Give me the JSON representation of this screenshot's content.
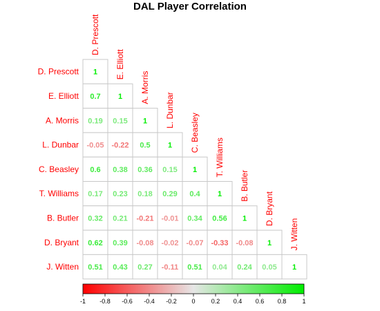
{
  "chart_data": {
    "type": "heatmap",
    "subtype": "correlation-lower-triangle",
    "title": "DAL Player Correlation",
    "players": [
      "D. Prescott",
      "E. Elliott",
      "A. Morris",
      "L. Dunbar",
      "C. Beasley",
      "T. Williams",
      "B. Butler",
      "D. Bryant",
      "J. Witten"
    ],
    "matrix": [
      [
        1
      ],
      [
        0.7,
        1
      ],
      [
        0.19,
        0.15,
        1
      ],
      [
        -0.05,
        -0.22,
        0.5,
        1
      ],
      [
        0.6,
        0.38,
        0.36,
        0.15,
        1
      ],
      [
        0.17,
        0.23,
        0.18,
        0.29,
        0.4,
        1
      ],
      [
        0.32,
        0.21,
        -0.21,
        -0.01,
        0.34,
        0.56,
        1
      ],
      [
        0.62,
        0.39,
        -0.08,
        -0.02,
        -0.07,
        -0.33,
        -0.08,
        1
      ],
      [
        0.51,
        0.43,
        0.27,
        -0.11,
        0.51,
        0.04,
        0.24,
        0.05,
        1
      ]
    ],
    "colorbar": {
      "range": [
        -1,
        1
      ],
      "ticks": [
        -1,
        -0.8,
        -0.6,
        -0.4,
        -0.2,
        0,
        0.2,
        0.4,
        0.6,
        0.8,
        1
      ],
      "tick_labels": [
        "-1",
        "-0.8",
        "-0.6",
        "-0.4",
        "-0.2",
        "0",
        "0.2",
        "0.4",
        "0.6",
        "0.8",
        "1"
      ]
    },
    "colors": {
      "negative": "#ff0000",
      "zero": "#e6e6e6",
      "positive": "#00ee00",
      "label": "#ff0000",
      "cell_border": "#c8c8c8"
    }
  }
}
